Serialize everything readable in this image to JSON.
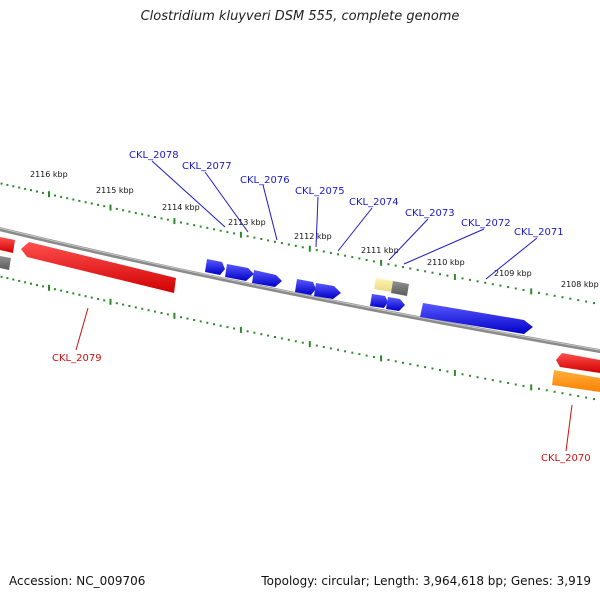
{
  "title": "Clostridium kluyveri DSM 555, complete genome",
  "footer": {
    "accession": "Accession: NC_009706",
    "topology": "Topology: circular; Length: 3,964,618 bp; Genes: 3,919"
  },
  "colors": {
    "backbone": "#7f7f7f",
    "tick_major": "#2a8a2a",
    "tick_minor": "#2a8a2a",
    "forward_label": "#1a1acc",
    "reverse_label": "#d01010",
    "cds_forward": "#1010e0",
    "cds_reverse": "#e01010",
    "rna": "#ff8c00",
    "pseudo": "#f0e68c",
    "other": "#707070"
  },
  "scale": {
    "unit": "kbp",
    "tick_labels": [
      "2116 kbp",
      "2115 kbp",
      "2114 kbp",
      "2113 kbp",
      "2112 kbp",
      "2111 kbp",
      "2110 kbp",
      "2109 kbp",
      "2108 kbp"
    ]
  },
  "genes_forward": [
    {
      "id": "CKL_2078"
    },
    {
      "id": "CKL_2077"
    },
    {
      "id": "CKL_2076"
    },
    {
      "id": "CKL_2075"
    },
    {
      "id": "CKL_2074"
    },
    {
      "id": "CKL_2073"
    },
    {
      "id": "CKL_2072"
    },
    {
      "id": "CKL_2071"
    }
  ],
  "genes_reverse": [
    {
      "id": "CKL_2079"
    },
    {
      "id": "CKL_2070"
    }
  ]
}
